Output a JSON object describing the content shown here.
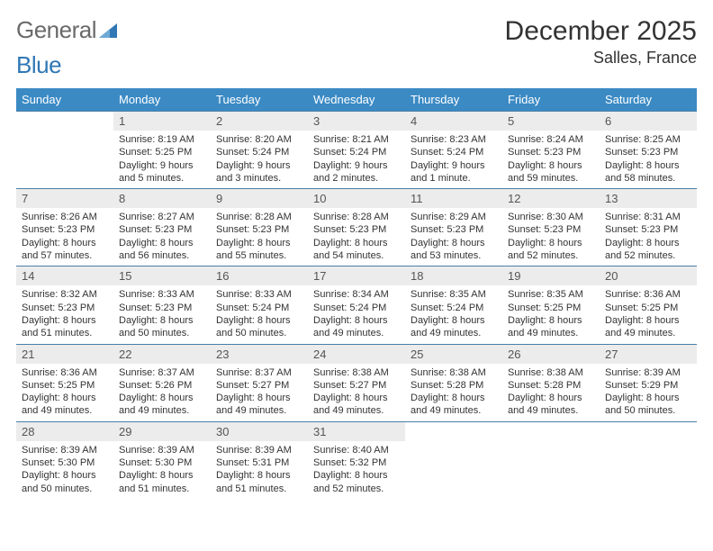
{
  "brand": {
    "word1": "General",
    "word2": "Blue"
  },
  "title": "December 2025",
  "location": "Salles, France",
  "weekdays": [
    "Sunday",
    "Monday",
    "Tuesday",
    "Wednesday",
    "Thursday",
    "Friday",
    "Saturday"
  ],
  "colors": {
    "header_bg": "#3b8ac4",
    "header_fg": "#ffffff",
    "row_border": "#4a7fa8",
    "daynum_bg": "#ececec",
    "text": "#333333",
    "logo_gray": "#6a6a6a",
    "logo_blue": "#2f77b5"
  },
  "weeks": [
    [
      null,
      {
        "n": "1",
        "sr": "Sunrise: 8:19 AM",
        "ss": "Sunset: 5:25 PM",
        "d1": "Daylight: 9 hours",
        "d2": "and 5 minutes."
      },
      {
        "n": "2",
        "sr": "Sunrise: 8:20 AM",
        "ss": "Sunset: 5:24 PM",
        "d1": "Daylight: 9 hours",
        "d2": "and 3 minutes."
      },
      {
        "n": "3",
        "sr": "Sunrise: 8:21 AM",
        "ss": "Sunset: 5:24 PM",
        "d1": "Daylight: 9 hours",
        "d2": "and 2 minutes."
      },
      {
        "n": "4",
        "sr": "Sunrise: 8:23 AM",
        "ss": "Sunset: 5:24 PM",
        "d1": "Daylight: 9 hours",
        "d2": "and 1 minute."
      },
      {
        "n": "5",
        "sr": "Sunrise: 8:24 AM",
        "ss": "Sunset: 5:23 PM",
        "d1": "Daylight: 8 hours",
        "d2": "and 59 minutes."
      },
      {
        "n": "6",
        "sr": "Sunrise: 8:25 AM",
        "ss": "Sunset: 5:23 PM",
        "d1": "Daylight: 8 hours",
        "d2": "and 58 minutes."
      }
    ],
    [
      {
        "n": "7",
        "sr": "Sunrise: 8:26 AM",
        "ss": "Sunset: 5:23 PM",
        "d1": "Daylight: 8 hours",
        "d2": "and 57 minutes."
      },
      {
        "n": "8",
        "sr": "Sunrise: 8:27 AM",
        "ss": "Sunset: 5:23 PM",
        "d1": "Daylight: 8 hours",
        "d2": "and 56 minutes."
      },
      {
        "n": "9",
        "sr": "Sunrise: 8:28 AM",
        "ss": "Sunset: 5:23 PM",
        "d1": "Daylight: 8 hours",
        "d2": "and 55 minutes."
      },
      {
        "n": "10",
        "sr": "Sunrise: 8:28 AM",
        "ss": "Sunset: 5:23 PM",
        "d1": "Daylight: 8 hours",
        "d2": "and 54 minutes."
      },
      {
        "n": "11",
        "sr": "Sunrise: 8:29 AM",
        "ss": "Sunset: 5:23 PM",
        "d1": "Daylight: 8 hours",
        "d2": "and 53 minutes."
      },
      {
        "n": "12",
        "sr": "Sunrise: 8:30 AM",
        "ss": "Sunset: 5:23 PM",
        "d1": "Daylight: 8 hours",
        "d2": "and 52 minutes."
      },
      {
        "n": "13",
        "sr": "Sunrise: 8:31 AM",
        "ss": "Sunset: 5:23 PM",
        "d1": "Daylight: 8 hours",
        "d2": "and 52 minutes."
      }
    ],
    [
      {
        "n": "14",
        "sr": "Sunrise: 8:32 AM",
        "ss": "Sunset: 5:23 PM",
        "d1": "Daylight: 8 hours",
        "d2": "and 51 minutes."
      },
      {
        "n": "15",
        "sr": "Sunrise: 8:33 AM",
        "ss": "Sunset: 5:23 PM",
        "d1": "Daylight: 8 hours",
        "d2": "and 50 minutes."
      },
      {
        "n": "16",
        "sr": "Sunrise: 8:33 AM",
        "ss": "Sunset: 5:24 PM",
        "d1": "Daylight: 8 hours",
        "d2": "and 50 minutes."
      },
      {
        "n": "17",
        "sr": "Sunrise: 8:34 AM",
        "ss": "Sunset: 5:24 PM",
        "d1": "Daylight: 8 hours",
        "d2": "and 49 minutes."
      },
      {
        "n": "18",
        "sr": "Sunrise: 8:35 AM",
        "ss": "Sunset: 5:24 PM",
        "d1": "Daylight: 8 hours",
        "d2": "and 49 minutes."
      },
      {
        "n": "19",
        "sr": "Sunrise: 8:35 AM",
        "ss": "Sunset: 5:25 PM",
        "d1": "Daylight: 8 hours",
        "d2": "and 49 minutes."
      },
      {
        "n": "20",
        "sr": "Sunrise: 8:36 AM",
        "ss": "Sunset: 5:25 PM",
        "d1": "Daylight: 8 hours",
        "d2": "and 49 minutes."
      }
    ],
    [
      {
        "n": "21",
        "sr": "Sunrise: 8:36 AM",
        "ss": "Sunset: 5:25 PM",
        "d1": "Daylight: 8 hours",
        "d2": "and 49 minutes."
      },
      {
        "n": "22",
        "sr": "Sunrise: 8:37 AM",
        "ss": "Sunset: 5:26 PM",
        "d1": "Daylight: 8 hours",
        "d2": "and 49 minutes."
      },
      {
        "n": "23",
        "sr": "Sunrise: 8:37 AM",
        "ss": "Sunset: 5:27 PM",
        "d1": "Daylight: 8 hours",
        "d2": "and 49 minutes."
      },
      {
        "n": "24",
        "sr": "Sunrise: 8:38 AM",
        "ss": "Sunset: 5:27 PM",
        "d1": "Daylight: 8 hours",
        "d2": "and 49 minutes."
      },
      {
        "n": "25",
        "sr": "Sunrise: 8:38 AM",
        "ss": "Sunset: 5:28 PM",
        "d1": "Daylight: 8 hours",
        "d2": "and 49 minutes."
      },
      {
        "n": "26",
        "sr": "Sunrise: 8:38 AM",
        "ss": "Sunset: 5:28 PM",
        "d1": "Daylight: 8 hours",
        "d2": "and 49 minutes."
      },
      {
        "n": "27",
        "sr": "Sunrise: 8:39 AM",
        "ss": "Sunset: 5:29 PM",
        "d1": "Daylight: 8 hours",
        "d2": "and 50 minutes."
      }
    ],
    [
      {
        "n": "28",
        "sr": "Sunrise: 8:39 AM",
        "ss": "Sunset: 5:30 PM",
        "d1": "Daylight: 8 hours",
        "d2": "and 50 minutes."
      },
      {
        "n": "29",
        "sr": "Sunrise: 8:39 AM",
        "ss": "Sunset: 5:30 PM",
        "d1": "Daylight: 8 hours",
        "d2": "and 51 minutes."
      },
      {
        "n": "30",
        "sr": "Sunrise: 8:39 AM",
        "ss": "Sunset: 5:31 PM",
        "d1": "Daylight: 8 hours",
        "d2": "and 51 minutes."
      },
      {
        "n": "31",
        "sr": "Sunrise: 8:40 AM",
        "ss": "Sunset: 5:32 PM",
        "d1": "Daylight: 8 hours",
        "d2": "and 52 minutes."
      },
      null,
      null,
      null
    ]
  ]
}
